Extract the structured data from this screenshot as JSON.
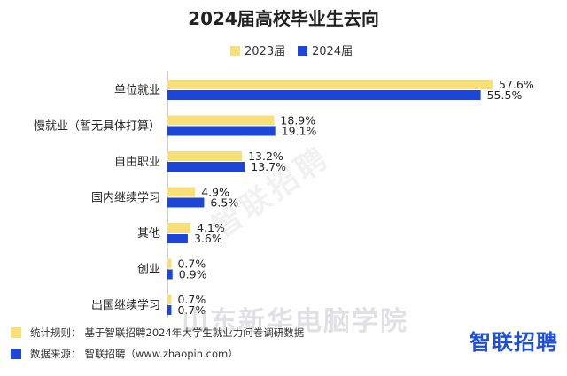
{
  "chart_data": {
    "type": "bar",
    "orientation": "horizontal",
    "title": "2024届高校毕业生去向",
    "categories": [
      "单位就业",
      "慢就业（暂无具体打算）",
      "自由职业",
      "国内继续学习",
      "其他",
      "创业",
      "出国继续学习"
    ],
    "series": [
      {
        "name": "2023届",
        "values": [
          57.6,
          18.9,
          13.2,
          4.9,
          4.1,
          0.7,
          0.7
        ],
        "labels": [
          "57.6%",
          "18.9%",
          "13.2%",
          "4.9%",
          "4.1%",
          "0.7%",
          "0.7%"
        ]
      },
      {
        "name": "2024届",
        "values": [
          55.5,
          19.1,
          13.7,
          6.5,
          3.6,
          0.9,
          0.7
        ],
        "labels": [
          "55.5%",
          "19.1%",
          "13.7%",
          "6.5%",
          "3.6%",
          "0.9%",
          "0.7%"
        ]
      }
    ],
    "colors": {
      "2023届": "#f7df7a",
      "2024届": "#1e46d6"
    },
    "xlim": [
      0,
      60
    ],
    "legend": "top-center",
    "grid": false
  },
  "footer": {
    "rule_label": "统计规则：",
    "rule_text": "基于智联招聘2024年大学生就业力问卷调研数据",
    "source_label": "数据来源：",
    "source_text": "智联招聘（www.zhaopin.com）"
  },
  "logo_text": "智联招聘",
  "watermark_text": "山东新华电脑学院"
}
